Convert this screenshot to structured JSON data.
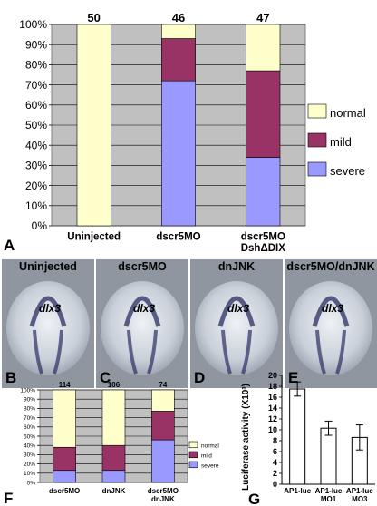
{
  "chart_data": [
    {
      "panel_letter": "A",
      "type": "bar",
      "stacked": true,
      "categories": [
        "Uninjected",
        "dscr5MO",
        "dscr5MO DshΔDIX"
      ],
      "category_lines": [
        [
          "Uninjected"
        ],
        [
          "dscr5MO"
        ],
        [
          "dscr5MO",
          "DshΔDIX"
        ]
      ],
      "n_labels": [
        "50",
        "46",
        "47"
      ],
      "series": [
        {
          "name": "severe",
          "color": "#9999ff",
          "values": [
            0,
            72,
            34
          ]
        },
        {
          "name": "mild",
          "color": "#993366",
          "values": [
            0,
            21,
            43
          ]
        },
        {
          "name": "normal",
          "color": "#ffffcc",
          "values": [
            100,
            7,
            23
          ]
        }
      ],
      "yticks": [
        "0%",
        "10%",
        "20%",
        "30%",
        "40%",
        "50%",
        "60%",
        "70%",
        "80%",
        "90%",
        "100%"
      ],
      "ylim": [
        0,
        100
      ],
      "grid": true,
      "legend_position": "right",
      "plot_bg": "#c0c0c0"
    },
    {
      "panel_letter": "F",
      "type": "bar",
      "stacked": true,
      "categories": [
        "dscr5MO",
        "dnJNK",
        "dscr5MO dnJNK"
      ],
      "category_lines": [
        [
          "dscr5MO"
        ],
        [
          "dnJNK"
        ],
        [
          "dscr5MO",
          "dnJNK"
        ]
      ],
      "n_labels": [
        "114",
        "106",
        "74"
      ],
      "series": [
        {
          "name": "severe",
          "color": "#9999ff",
          "values": [
            13,
            13,
            46
          ]
        },
        {
          "name": "mild",
          "color": "#993366",
          "values": [
            25,
            27,
            31
          ]
        },
        {
          "name": "normal",
          "color": "#ffffcc",
          "values": [
            62,
            60,
            23
          ]
        }
      ],
      "yticks": [
        "0%",
        "10%",
        "20%",
        "30%",
        "40%",
        "50%",
        "60%",
        "70%",
        "80%",
        "90%",
        "100%"
      ],
      "ylim": [
        0,
        100
      ],
      "grid": true,
      "legend_position": "right",
      "plot_bg": "#c0c0c0"
    },
    {
      "panel_letter": "G",
      "type": "bar",
      "categories": [
        "AP1-luc",
        "AP1-luc MO1",
        "AP1-luc MO3"
      ],
      "category_lines": [
        [
          "AP1-luc"
        ],
        [
          "AP1-luc",
          "MO1"
        ],
        [
          "AP1-luc",
          "MO3"
        ]
      ],
      "values": [
        17.5,
        10.3,
        8.6
      ],
      "errors": [
        1.3,
        1.3,
        2.3
      ],
      "ylabel": "Luciferase activity (X10³)",
      "yticks": [
        "0",
        "2",
        "4",
        "6",
        "8",
        "10",
        "12",
        "14",
        "16",
        "18",
        "20"
      ],
      "ylim": [
        0,
        20
      ],
      "bar_color": "#ffffff"
    }
  ],
  "embryo_panels": [
    {
      "letter": "B",
      "title": "Uninjected",
      "gene": "dlx3"
    },
    {
      "letter": "C",
      "title": "dscr5MO",
      "gene": "dlx3"
    },
    {
      "letter": "D",
      "title": "dnJNK",
      "gene": "dlx3"
    },
    {
      "letter": "E",
      "title": "dscr5MO/dnJNK",
      "gene": "dlx3"
    }
  ]
}
